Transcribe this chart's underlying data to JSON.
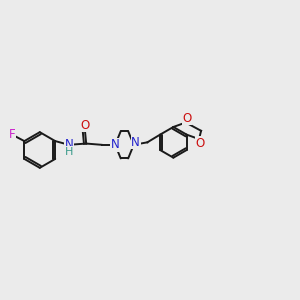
{
  "bg_color": "#ebebeb",
  "bond_color": "#1a1a1a",
  "N_color": "#2222cc",
  "O_color": "#cc1111",
  "F_color": "#cc22cc",
  "H_color": "#3a9a8a",
  "line_width": 1.4,
  "font_size": 8.5,
  "xlim": [
    0,
    12
  ],
  "ylim": [
    3,
    9
  ]
}
